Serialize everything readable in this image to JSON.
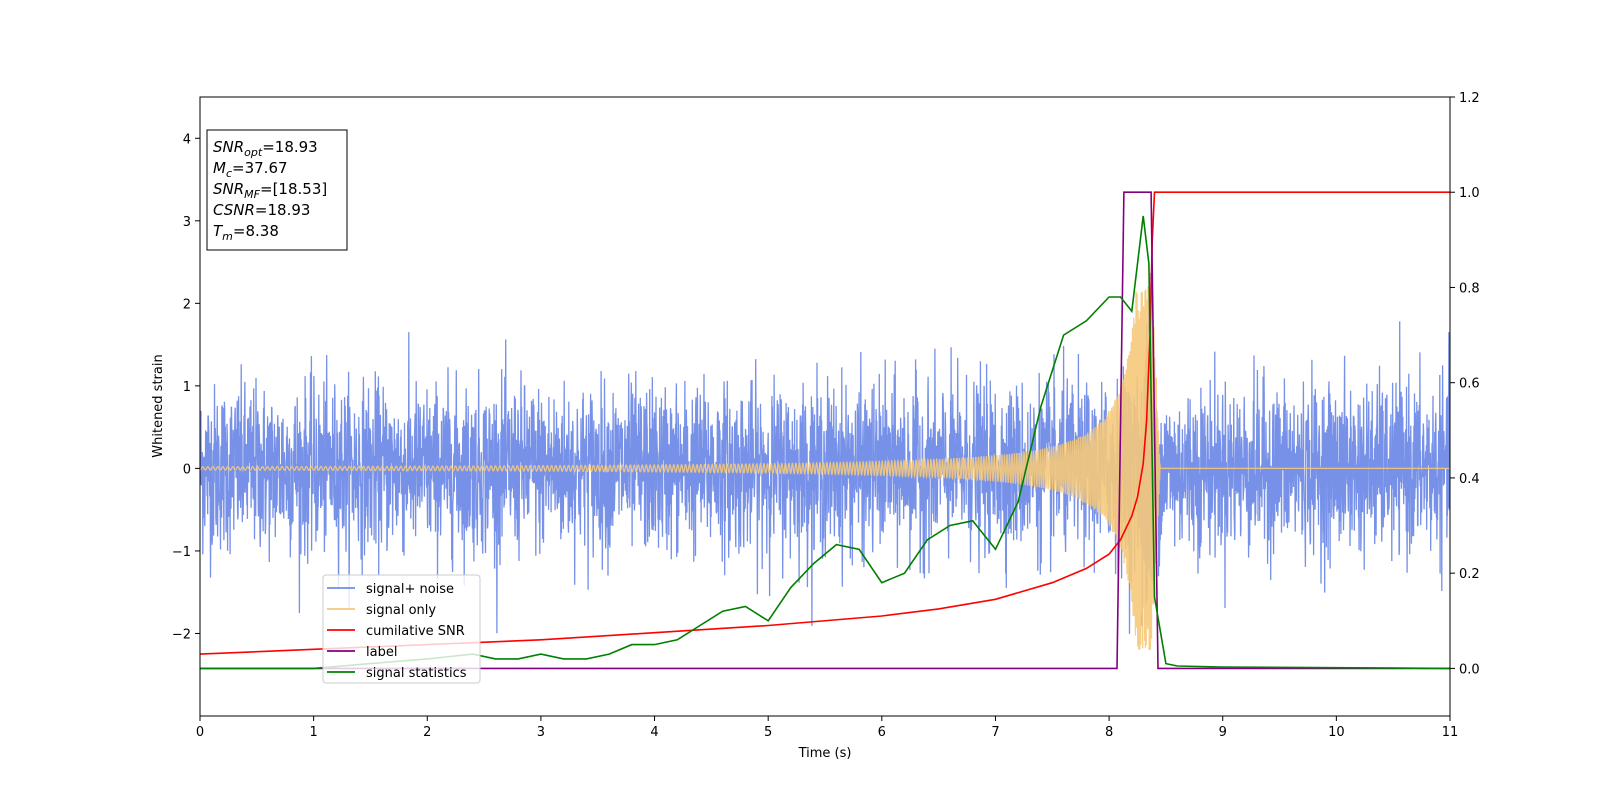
{
  "chart_data": {
    "type": "line",
    "xlabel": "Time (s)",
    "ylabel": "Whitened strain",
    "xlim": [
      0,
      11
    ],
    "ylim": [
      -3,
      4.5
    ],
    "y2lim": [
      -0.1,
      1.2
    ],
    "x_ticks": [
      "0",
      "1",
      "2",
      "3",
      "4",
      "5",
      "6",
      "7",
      "8",
      "9",
      "10",
      "11"
    ],
    "y_ticks": [
      "−2",
      "−1",
      "0",
      "1",
      "2",
      "3",
      "4"
    ],
    "y2_ticks": [
      "0.0",
      "0.2",
      "0.4",
      "0.6",
      "0.8",
      "1.0",
      "1.2"
    ],
    "annotation": {
      "lines": [
        {
          "base": "SNR",
          "sub": "opt",
          "value": "=18.93"
        },
        {
          "base": "M",
          "sub": "c",
          "value": "=37.67"
        },
        {
          "base": "SNR",
          "sub": "MF",
          "value": "=[18.53]"
        },
        {
          "base": "CSNR",
          "sub": "",
          "value": "=18.93"
        },
        {
          "base": "T",
          "sub": "m",
          "value": "=8.38"
        }
      ]
    },
    "legend": {
      "placement": "lower-left",
      "entries": [
        "signal+ noise",
        "signal only",
        "cumilative SNR",
        "label",
        "signal statistics"
      ]
    },
    "series": [
      {
        "name": "signal+ noise",
        "axis": "left",
        "color": "#6f8be6",
        "noise_sigma": 0.5,
        "x_start": 0,
        "x_end": 11,
        "note_points": "dense noisy whitened strain around 0"
      },
      {
        "name": "signal only",
        "axis": "left",
        "color": "#f5c97a",
        "chirp": {
          "t_merger": 8.38,
          "amp_start": 0.02,
          "amp_peak": 2.2,
          "ringdown_end": 8.45
        }
      },
      {
        "name": "cumilative SNR",
        "axis": "right",
        "color": "#ff0000",
        "x": [
          0,
          1,
          2,
          3,
          4,
          5,
          6,
          6.5,
          7,
          7.5,
          7.8,
          8.0,
          8.1,
          8.2,
          8.25,
          8.3,
          8.33,
          8.36,
          8.38,
          8.4,
          11
        ],
        "y": [
          0.03,
          0.04,
          0.05,
          0.06,
          0.075,
          0.09,
          0.11,
          0.125,
          0.145,
          0.18,
          0.21,
          0.24,
          0.27,
          0.32,
          0.36,
          0.43,
          0.52,
          0.7,
          0.9,
          1.0,
          1.0
        ]
      },
      {
        "name": "label",
        "axis": "right",
        "color": "#800080",
        "x": [
          0,
          8.07,
          8.13,
          8.37,
          8.43,
          11
        ],
        "y": [
          0,
          0,
          1,
          1,
          0,
          0
        ]
      },
      {
        "name": "signal statistics",
        "axis": "right",
        "color": "#008000",
        "x": [
          0,
          1.0,
          1.5,
          2.0,
          2.2,
          2.4,
          2.6,
          2.8,
          3.0,
          3.2,
          3.4,
          3.6,
          3.8,
          4.0,
          4.2,
          4.4,
          4.6,
          4.8,
          5.0,
          5.2,
          5.4,
          5.6,
          5.8,
          6.0,
          6.2,
          6.4,
          6.6,
          6.8,
          7.0,
          7.2,
          7.4,
          7.6,
          7.8,
          8.0,
          8.1,
          8.2,
          8.3,
          8.35,
          8.4,
          8.5,
          8.6,
          9.0,
          11
        ],
        "y": [
          0,
          0,
          0.01,
          0.02,
          0.025,
          0.03,
          0.02,
          0.02,
          0.03,
          0.02,
          0.02,
          0.03,
          0.05,
          0.05,
          0.06,
          0.09,
          0.12,
          0.13,
          0.1,
          0.17,
          0.22,
          0.26,
          0.25,
          0.18,
          0.2,
          0.27,
          0.3,
          0.31,
          0.25,
          0.35,
          0.55,
          0.7,
          0.73,
          0.78,
          0.78,
          0.75,
          0.95,
          0.85,
          0.15,
          0.01,
          0.005,
          0.003,
          0
        ]
      }
    ]
  }
}
